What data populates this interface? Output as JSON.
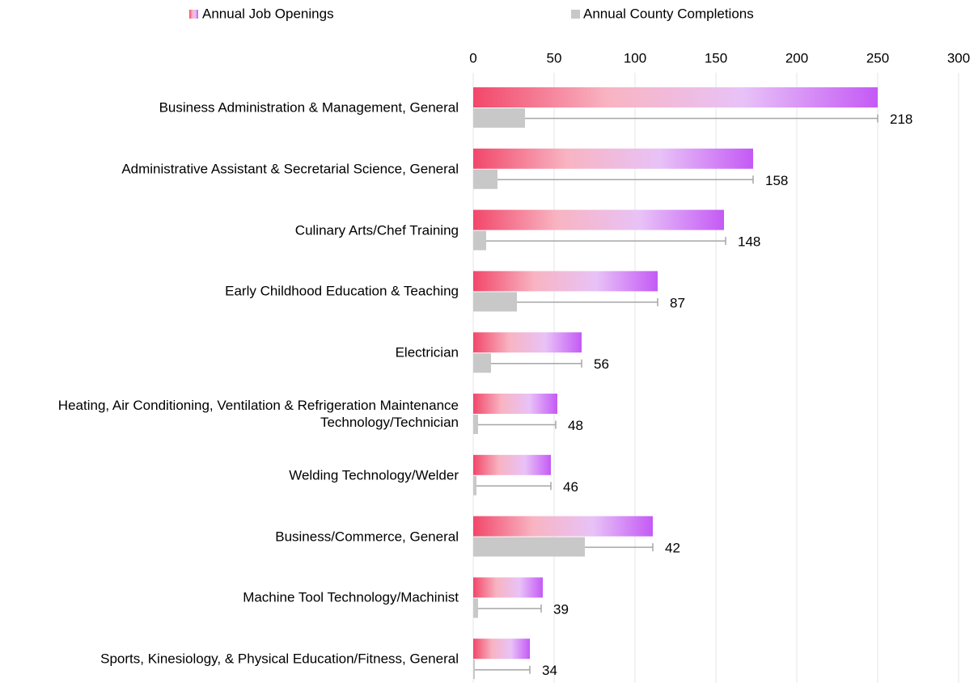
{
  "chart_data": {
    "type": "bar",
    "orientation": "horizontal",
    "categories": [
      "Business Administration & Management, General",
      "Administrative Assistant & Secretarial Science, General",
      "Culinary Arts/Chef Training",
      "Early Childhood Education & Teaching",
      "Electrician",
      "Heating, Air Conditioning, Ventilation & Refrigeration Maintenance Technology/Technician",
      "Welding Technology/Welder",
      "Business/Commerce, General",
      "Machine Tool Technology/Machinist",
      "Sports, Kinesiology, & Physical Education/Fitness, General"
    ],
    "series": [
      {
        "name": "Annual Job Openings",
        "color": [
          "#f2476a",
          "#f8b4c2",
          "#e8c2f7",
          "#c45af5"
        ],
        "values": [
          250,
          173,
          155,
          114,
          67,
          52,
          48,
          111,
          43,
          35
        ]
      },
      {
        "name": "Annual County Completions",
        "color": "#c8c8c8",
        "values": [
          32,
          15,
          8,
          27,
          11,
          3,
          2,
          69,
          3,
          1
        ],
        "errors": [
          218,
          158,
          148,
          87,
          56,
          48,
          46,
          42,
          39,
          34
        ],
        "error_color": "#a6a6a6"
      }
    ],
    "xlim": [
      0,
      300
    ],
    "xticks": [
      0,
      50,
      100,
      150,
      200,
      250,
      300
    ],
    "grid": true,
    "legend": "top"
  }
}
